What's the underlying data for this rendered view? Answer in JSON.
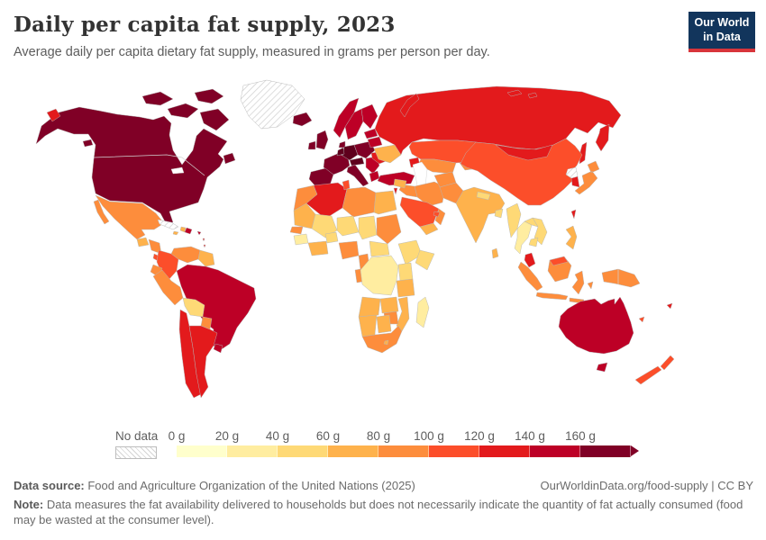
{
  "header": {
    "title": "Daily per capita fat supply, 2023",
    "subtitle": "Average daily per capita dietary fat supply, measured in grams per person per day.",
    "logo": {
      "line1": "Our World",
      "line2": "in Data",
      "bg_color": "#12355c",
      "accent_color": "#d8353b"
    }
  },
  "legend": {
    "no_data_label": "No data",
    "tick_labels": [
      "0 g",
      "20 g",
      "40 g",
      "60 g",
      "80 g",
      "100 g",
      "120 g",
      "140 g",
      "160 g"
    ],
    "colors": [
      "#ffffcc",
      "#ffeda0",
      "#fed976",
      "#feb24c",
      "#fd8d3c",
      "#fc4e2a",
      "#e31a1c",
      "#bd0026",
      "#800026"
    ]
  },
  "footer": {
    "source_label": "Data source:",
    "source_text": " Food and Agriculture Organization of the United Nations (2025)",
    "link_text": "OurWorldinData.org/food-supply | CC BY",
    "note_label": "Note:",
    "note_text": " Data measures the fat availability delivered to households but does not necessarily indicate the quantity of fat actually consumed (food may be wasted at the consumer level)."
  },
  "map": {
    "water_color": "#ffffff",
    "no_data_fill": "url(#hatch)",
    "region_colors": {
      "usa_canada": "#800026",
      "alaska_spot": "#e31a1c",
      "iceland": "#800026",
      "mexico": "#fd8d3c",
      "guatemala": "#feb24c",
      "honduras_nicaragua": "#fd8d3c",
      "costa_panama": "#fc4e2a",
      "haiti": "#feb24c",
      "dominican": "#bd0026",
      "jamaica": "#feb24c",
      "puerto_rico": "#bd0026",
      "trinidad": "#bd0026",
      "antilles": "#e31a1c",
      "colombia": "#fc4e2a",
      "venezuela": "#fd8d3c",
      "guyanas": "#feb24c",
      "ecuador": "#fd8d3c",
      "peru": "#fd8d3c",
      "brazil": "#bd0026",
      "bolivia": "#fed976",
      "paraguay": "#fd8d3c",
      "chile": "#e31a1c",
      "argentina": "#e31a1c",
      "uruguay": "#bd0026",
      "uk": "#800026",
      "ireland": "#800026",
      "norway": "#bd0026",
      "sweden": "#bd0026",
      "finland": "#bd0026",
      "denmark": "#800026",
      "france": "#800026",
      "iberia": "#800026",
      "germany": "#5f001d",
      "benelux": "#5f001d",
      "alpine": "#5f001d",
      "central_europe": "#800026",
      "italy": "#800026",
      "balkans": "#bd0026",
      "greece": "#bd0026",
      "romania": "#e31a1c",
      "baltics": "#bd0026",
      "belarus": "#bd0026",
      "ukraine": "#feb24c",
      "turkey": "#bd0026",
      "russia": "#e31a1c",
      "kazakhstan": "#fc4e2a",
      "central_asia": "#fd8d3c",
      "kyrgyz": "#fd8d3c",
      "caucasus": "#e31a1c",
      "iran": "#fd8d3c",
      "iraq": "#fd8d3c",
      "syria": "#feb24c",
      "israel_jordan": "#e31a1c",
      "saudi": "#fc4e2a",
      "yemen": "#feb24c",
      "oman": "#fd8d3c",
      "uae": "#fc4e2a",
      "morocco": "#fd8d3c",
      "algeria": "#e31a1c",
      "tunisia": "#fc4e2a",
      "libya": "#fd8d3c",
      "egypt": "#feb24c",
      "mauritania": "#feb24c",
      "mali": "#fed976",
      "niger": "#fed976",
      "chad": "#fed976",
      "sudan": "#fd8d3c",
      "senegal": "#fd8d3c",
      "guinea": "#ffeda0",
      "burkina": "#fed976",
      "ivory_ghana": "#feb24c",
      "nigeria": "#fd8d3c",
      "cameroon": "#fd8d3c",
      "car": "#fed976",
      "gabon_congo": "#fd8d3c",
      "ethiopia": "#fed976",
      "somalia": "#fed976",
      "kenya": "#fed976",
      "tanzania": "#feb24c",
      "drc": "#ffeda0",
      "angola": "#feb24c",
      "zambia": "#feb24c",
      "mozambique": "#feb24c",
      "zimbabwe": "#fd8d3c",
      "namibia": "#feb24c",
      "botswana": "#feb24c",
      "south_africa": "#fd8d3c",
      "lesotho": "#feb24c",
      "madagascar": "#ffeda0",
      "afghanistan": "#fd8d3c",
      "pakistan": "#fd8d3c",
      "india": "#feb24c",
      "nepal": "#fed976",
      "bangladesh": "#fed976",
      "sri_lanka": "#feb24c",
      "china": "#fc4e2a",
      "mongolia": "#e31a1c",
      "myanmar": "#fed976",
      "thailand": "#ffeda0",
      "laos": "#fed976",
      "vietnam": "#fed976",
      "cambodia": "#fed976",
      "malaysia": "#e31a1c",
      "east_malaysia": "#fc4e2a",
      "indonesia": "#fd8d3c",
      "philippines": "#feb24c",
      "taiwan": "#e31a1c",
      "new_guinea": "#fd8d3c",
      "japan": "#fd8d3c",
      "s_korea": "#e31a1c",
      "australia": "#bd0026",
      "nz": "#fc4e2a",
      "fiji": "#e31a1c",
      "new_caledonia": "#fc4e2a"
    }
  },
  "chart_data": {
    "type": "heatmap",
    "subtype": "world choropleth map",
    "title": "Daily per capita fat supply, 2023",
    "unit": "grams per person per day",
    "year_shown": "2023",
    "legend_position": "bottom",
    "legend_bins": [
      {
        "range": "0-20 g",
        "color": "#ffffcc"
      },
      {
        "range": "20-40 g",
        "color": "#ffeda0"
      },
      {
        "range": "40-60 g",
        "color": "#fed976"
      },
      {
        "range": "60-80 g",
        "color": "#feb24c"
      },
      {
        "range": "80-100 g",
        "color": "#fd8d3c"
      },
      {
        "range": "100-120 g",
        "color": "#fc4e2a"
      },
      {
        "range": "120-140 g",
        "color": "#e31a1c"
      },
      {
        "range": "140-160 g",
        "color": "#bd0026"
      },
      {
        "range": "160+ g",
        "color": "#800026"
      }
    ],
    "no_data_regions": [
      "Greenland",
      "Cuba",
      "North Korea"
    ],
    "regions_by_bin": {
      "160+ g": [
        "United States",
        "Canada",
        "Germany",
        "Austria",
        "Switzerland",
        "Belgium",
        "Netherlands",
        "France",
        "Spain",
        "Portugal",
        "Italy",
        "United Kingdom",
        "Ireland",
        "Iceland",
        "Poland",
        "Denmark"
      ],
      "140-160 g": [
        "Brazil",
        "Australia",
        "Turkey",
        "Norway",
        "Sweden",
        "Finland",
        "Greece",
        "Serbia",
        "Bulgaria",
        "Uruguay",
        "Dominican Republic",
        "Baltic states",
        "Belarus",
        "Trinidad and Tobago",
        "Puerto Rico"
      ],
      "120-140 g": [
        "Russia",
        "Argentina",
        "Chile",
        "Mongolia",
        "Algeria",
        "South Korea",
        "Taiwan",
        "Malaysia",
        "Romania",
        "Caucasus countries",
        "Israel",
        "Fiji"
      ],
      "100-120 g": [
        "China",
        "Kazakhstan",
        "Saudi Arabia",
        "Colombia",
        "Tunisia",
        "Costa Rica",
        "Panama",
        "New Zealand",
        "United Arab Emirates",
        "New Caledonia",
        "Malaysia (Borneo)"
      ],
      "80-100 g": [
        "Mexico",
        "Venezuela",
        "Peru",
        "Ecuador",
        "Paraguay",
        "Iran",
        "Iraq",
        "Morocco",
        "Libya",
        "Sudan",
        "Nigeria",
        "Cameroon",
        "Senegal",
        "Gabon",
        "South Africa",
        "Zimbabwe",
        "Indonesia",
        "Papua New Guinea",
        "Japan",
        "Pakistan",
        "Afghanistan",
        "Uzbekistan",
        "Turkmenistan",
        "Oman",
        "Honduras",
        "Nicaragua"
      ],
      "60-80 g": [
        "India",
        "Egypt",
        "Mauritania",
        "Ghana",
        "Cote d'Ivoire",
        "Tanzania",
        "Angola",
        "Zambia",
        "Mozambique",
        "Namibia",
        "Botswana",
        "Philippines",
        "Sri Lanka",
        "Syria",
        "Yemen",
        "Guyana",
        "Suriname",
        "Guatemala",
        "Jamaica",
        "Haiti",
        "Ukraine",
        "Lesotho"
      ],
      "40-60 g": [
        "Mali",
        "Niger",
        "Chad",
        "Bolivia",
        "Myanmar",
        "Vietnam",
        "Laos",
        "Cambodia",
        "Bangladesh",
        "Ethiopia",
        "Somalia",
        "Kenya",
        "Central African Republic",
        "Burkina Faso",
        "Nepal"
      ],
      "20-40 g": [
        "Guinea",
        "Sierra Leone",
        "Democratic Republic of Congo",
        "Madagascar",
        "Thailand"
      ]
    }
  }
}
